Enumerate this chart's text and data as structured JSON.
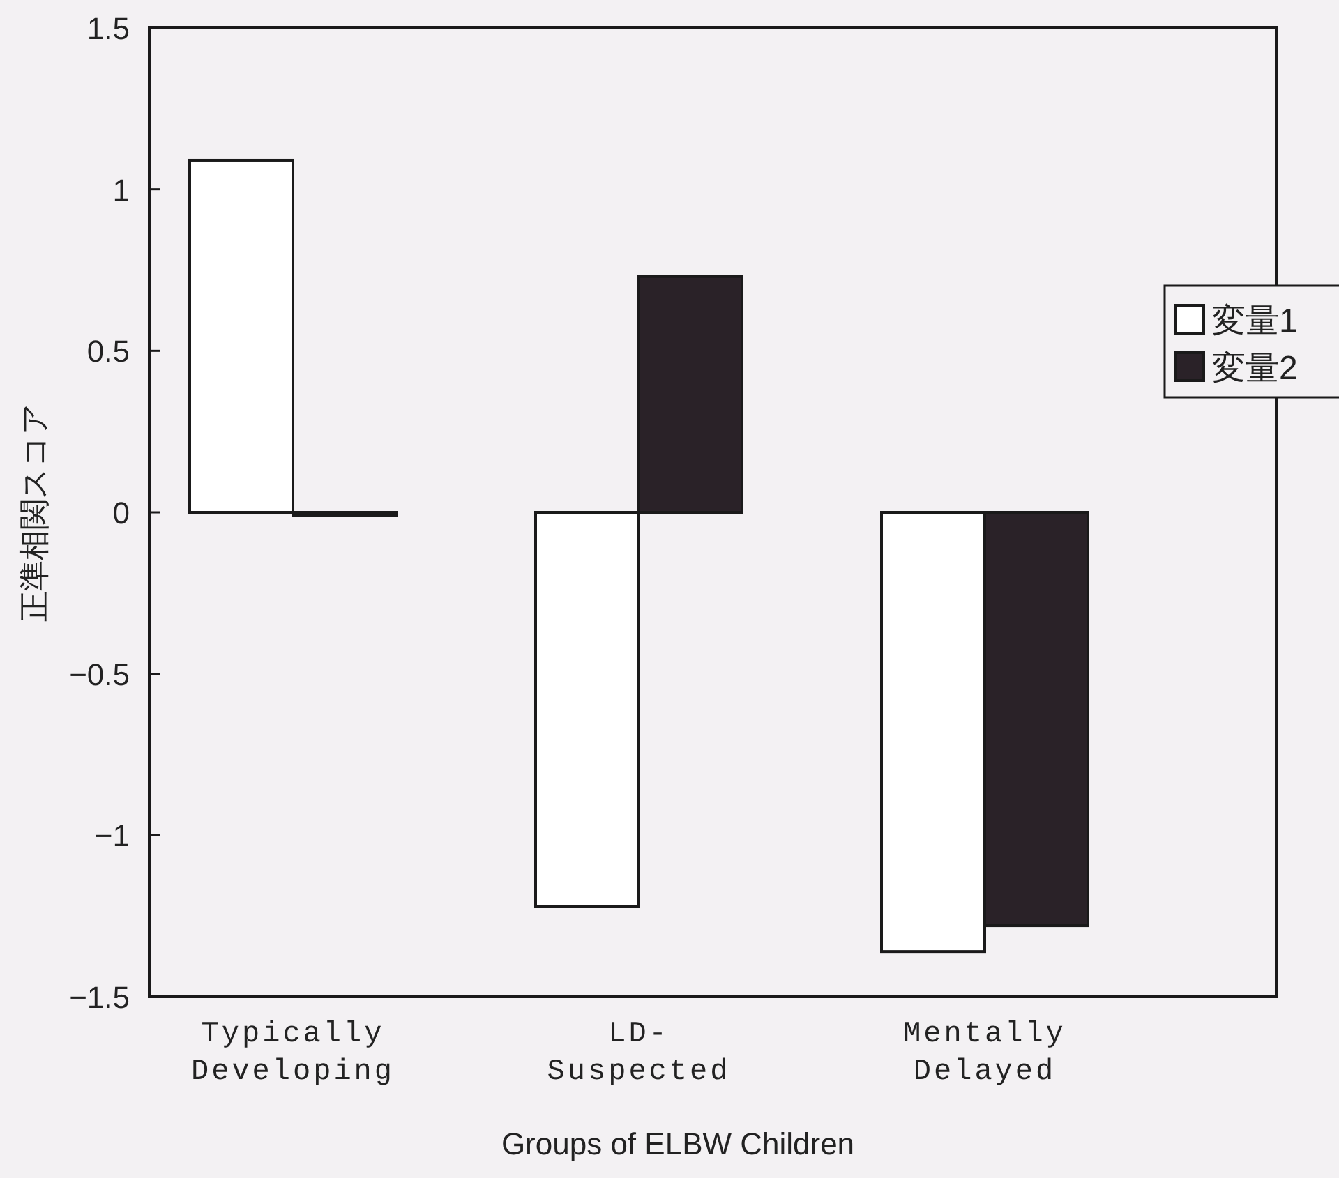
{
  "chart_data": {
    "type": "bar",
    "xlabel": "Groups of ELBW Children",
    "ylabel": "正準相関スコア",
    "categories": [
      "Typically Developing",
      "LD-Suspected",
      "Mentally Delayed"
    ],
    "series": [
      {
        "name": "変量1",
        "color": "#ffffff",
        "values": [
          1.09,
          -1.22,
          -1.36
        ]
      },
      {
        "name": "変量2",
        "color": "#2a2228",
        "values": [
          -0.01,
          0.73,
          -1.28
        ]
      }
    ],
    "ylim": [
      -1.5,
      1.5
    ],
    "yticks": [
      {
        "value": -1.5,
        "label": "−1.5"
      },
      {
        "value": -1,
        "label": "−1"
      },
      {
        "value": -0.5,
        "label": "−0.5"
      },
      0,
      0.5,
      1,
      1.5
    ],
    "legend": "top right",
    "grid": false
  }
}
